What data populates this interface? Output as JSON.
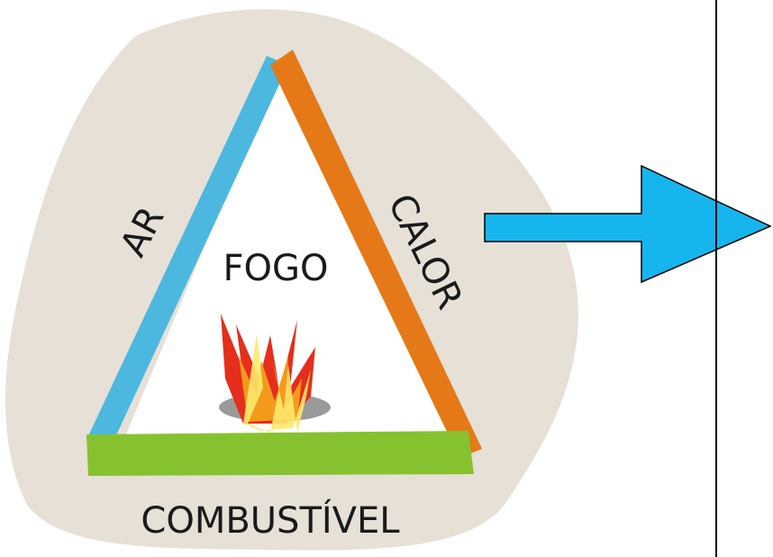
{
  "diagram": {
    "center_label": "FOGO",
    "left_side_label": "AR",
    "right_side_label": "CALOR",
    "bottom_side_label": "COMBUSTÍVEL"
  }
}
